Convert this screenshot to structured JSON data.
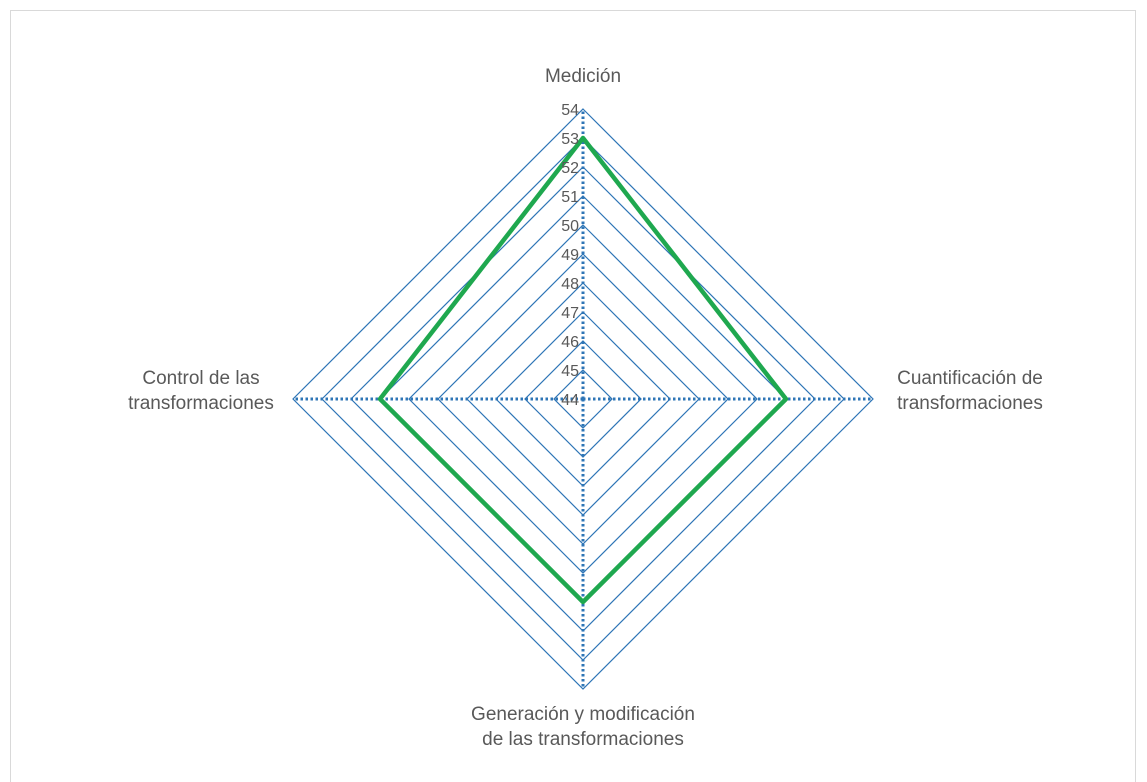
{
  "chart_data": {
    "type": "radar",
    "categories": [
      [
        "Medición"
      ],
      [
        "Cuantificación de",
        "transformaciones"
      ],
      [
        "Generación y modificación",
        "de las transformaciones"
      ],
      [
        "Control de las",
        "transformaciones"
      ]
    ],
    "series": [
      {
        "values": [
          53,
          51,
          51,
          51
        ],
        "color": "#1fa84f"
      }
    ],
    "r_ticks": [
      44,
      45,
      46,
      47,
      48,
      49,
      50,
      51,
      52,
      53,
      54
    ],
    "r_range": [
      44,
      54
    ],
    "grid_color": "#2e75b6",
    "axis_color": "#2e75b6",
    "legend": "none"
  }
}
